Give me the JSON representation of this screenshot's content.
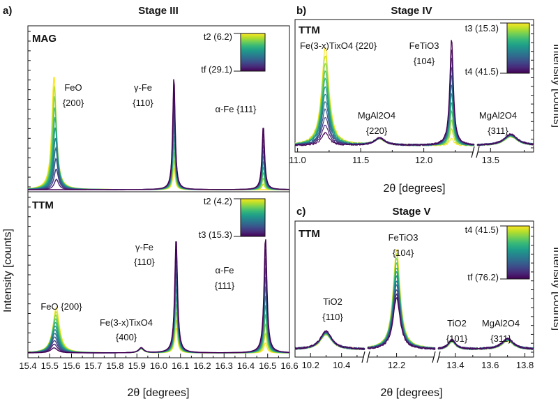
{
  "colors": {
    "viridis": [
      "#440154",
      "#482878",
      "#3e4989",
      "#31688e",
      "#26828e",
      "#1f9e89",
      "#35b779",
      "#6ece58",
      "#b5de2b",
      "#fde725"
    ]
  },
  "chart_data": [
    {
      "id": "a",
      "type": "line",
      "panel_letter": "a)",
      "title": "Stage III",
      "xlabel": "2θ  [degrees]",
      "ylabel": "Intensity  [counts]",
      "xlim": [
        15.4,
        16.6
      ],
      "x_ticks": [
        "15.4",
        "15.5",
        "15.6",
        "15.7",
        "15.8",
        "15.9",
        "16.0",
        "16.1",
        "16.2",
        "16.3",
        "16.4",
        "16.5",
        "16.6"
      ],
      "subplots": [
        {
          "label": "MAG",
          "colorbar": {
            "top": "t2 (6.2)",
            "bottom": "tf (29.1)"
          },
          "peaks": [
            {
              "name": "FeO {200}",
              "position": 15.52,
              "intensity_first": 0.78,
              "intensity_last": 0.0
            },
            {
              "name": "γ-Fe {110}",
              "position": 16.07,
              "intensity_first": 0.15,
              "intensity_last": 0.78
            },
            {
              "name": "α-Fe {111}",
              "position": 16.48,
              "intensity_first": 0.0,
              "intensity_last": 0.44
            }
          ],
          "annotations": [
            "FeO",
            "{200}",
            "γ-Fe",
            "{110}",
            "α-Fe {111}"
          ]
        },
        {
          "label": "TTM",
          "colorbar": {
            "top": "t2 (4.2)",
            "bottom": "t3 (15.3)"
          },
          "peaks": [
            {
              "name": "FeO {200}",
              "position": 15.53,
              "intensity_first": 0.35,
              "intensity_last": 0.04
            },
            {
              "name": "Fe(3-x)TixO4 {400}",
              "position": 15.92,
              "intensity_first": 0.03,
              "intensity_last": 0.04
            },
            {
              "name": "γ-Fe {110}",
              "position": 16.08,
              "intensity_first": 0.2,
              "intensity_last": 0.9
            },
            {
              "name": "α-Fe {111}",
              "position": 16.49,
              "intensity_first": 0.08,
              "intensity_last": 0.9
            }
          ],
          "annotations": [
            "FeO {200}",
            "Fe(3-x)TixO4",
            "{400}",
            "γ-Fe",
            "{110}",
            "α-Fe",
            "{111}"
          ]
        }
      ]
    },
    {
      "id": "b",
      "type": "line",
      "panel_letter": "b)",
      "title": "Stage IV",
      "label": "TTM",
      "xlabel": "2θ  [degrees]",
      "ylabel": "Intensity [counts]",
      "colorbar": {
        "top": "t3 (15.3)",
        "bottom": "t4 (41.5)"
      },
      "x_ticks": [
        "11.0",
        "11.5",
        "12.0",
        "13.5"
      ],
      "peaks": [
        {
          "name": "Fe(3-x)TixO4 {220}",
          "position": 11.22,
          "intensity_first": 0.78,
          "intensity_last": 0.1
        },
        {
          "name": "MgAl2O4 {220}",
          "position": 11.65,
          "intensity_first": 0.05,
          "intensity_last": 0.06
        },
        {
          "name": "FeTiO3 {104}",
          "position": 12.22,
          "intensity_first": 0.06,
          "intensity_last": 0.85
        },
        {
          "name": "MgAl2O4 {311}",
          "position": 13.65,
          "intensity_first": 0.07,
          "intensity_last": 0.09
        }
      ],
      "annotations": [
        "Fe(3-x)TixO4 {220}",
        "MgAl2O4",
        "{220}",
        "FeTiO3",
        "{104}",
        "MgAl2O4",
        "{311}"
      ]
    },
    {
      "id": "c",
      "type": "line",
      "panel_letter": "c)",
      "title": "Stage V",
      "label": "TTM",
      "xlabel": "2θ  [degrees]",
      "ylabel": "Intensity [counts]",
      "colorbar": {
        "top": "t4 (41.5)",
        "bottom": "tf (76.2)"
      },
      "x_ticks": [
        "10.2",
        "10.4",
        "12.2",
        "13.4",
        "13.6",
        "13.8"
      ],
      "peaks": [
        {
          "name": "TiO2 {110}",
          "position": 10.3,
          "intensity_first": 0.12,
          "intensity_last": 0.15
        },
        {
          "name": "FeTiO3 {104}",
          "position": 12.2,
          "intensity_first": 0.82,
          "intensity_last": 0.42
        },
        {
          "name": "TiO2 {101}",
          "position": 13.38,
          "intensity_first": 0.06,
          "intensity_last": 0.08
        },
        {
          "name": "MgAl2O4 {311}",
          "position": 13.7,
          "intensity_first": 0.07,
          "intensity_last": 0.09
        }
      ],
      "annotations": [
        "TiO2",
        "{110}",
        "FeTiO3",
        "{104}",
        "TiO2",
        "{101}",
        "MgAl2O4",
        "{311}"
      ]
    }
  ]
}
